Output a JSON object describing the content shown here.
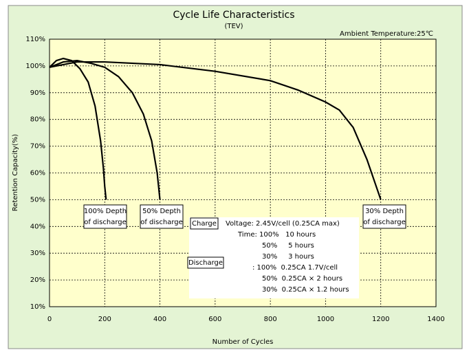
{
  "chart_data": {
    "type": "line",
    "title": "Cycle Life Characteristics",
    "subtitle": "(TEV)",
    "note": "Ambient Temperature:25℃",
    "x_label": "Number of Cycles",
    "y_label": "Retention Capacity(%)",
    "xlim": [
      0,
      1400
    ],
    "xticks": [
      0,
      200,
      400,
      600,
      800,
      1000,
      1200,
      1400
    ],
    "ylim": [
      10,
      110
    ],
    "yticks": [
      {
        "value": 10,
        "label": "10%"
      },
      {
        "value": 20,
        "label": "20%"
      },
      {
        "value": 30,
        "label": "30%"
      },
      {
        "value": 40,
        "label": "40%"
      },
      {
        "value": 50,
        "label": "50%"
      },
      {
        "value": 60,
        "label": "60%"
      },
      {
        "value": 70,
        "label": "70%"
      },
      {
        "value": 80,
        "label": "80%"
      },
      {
        "value": 90,
        "label": "90%"
      },
      {
        "value": 100,
        "label": "100%"
      },
      {
        "value": 110,
        "label": "110%"
      }
    ],
    "grid": true,
    "series": [
      {
        "color": "#000000",
        "x": [
          0,
          25,
          50,
          80,
          110,
          140,
          165,
          185,
          195,
          200,
          205
        ],
        "values": [
          99.5,
          102,
          102.8,
          102,
          99,
          94,
          85,
          72,
          62,
          55,
          50
        ],
        "label_lines": [
          "100% Depth",
          "of discharge"
        ]
      },
      {
        "color": "#000000",
        "x": [
          0,
          50,
          100,
          150,
          200,
          250,
          300,
          340,
          370,
          390,
          400
        ],
        "values": [
          99.5,
          101.5,
          102,
          101,
          99.5,
          96,
          90,
          82,
          72,
          60,
          50
        ],
        "label_lines": [
          "50% Depth",
          "of discharge"
        ]
      },
      {
        "color": "#000000",
        "x": [
          0,
          100,
          200,
          400,
          600,
          800,
          900,
          1000,
          1050,
          1100,
          1150,
          1180,
          1200
        ],
        "values": [
          99.5,
          101.5,
          101.5,
          100.5,
          98,
          94.5,
          91,
          86.5,
          83.5,
          77,
          65,
          56,
          50
        ],
        "label_lines": [
          "30% Depth",
          "of discharge"
        ]
      }
    ],
    "conditions": {
      "charge_label": "Charge",
      "discharge_label": "Discharge",
      "lines": [
        "Voltage: 2.45V/cell (0.25CA max)",
        "Time: 100%   10 hours",
        "50%     5 hours",
        "30%     3 hours",
        ": 100%  0.25CA 1.7V/cell",
        "50%  0.25CA × 2 hours",
        "30%  0.25CA × 1.2 hours"
      ]
    }
  }
}
